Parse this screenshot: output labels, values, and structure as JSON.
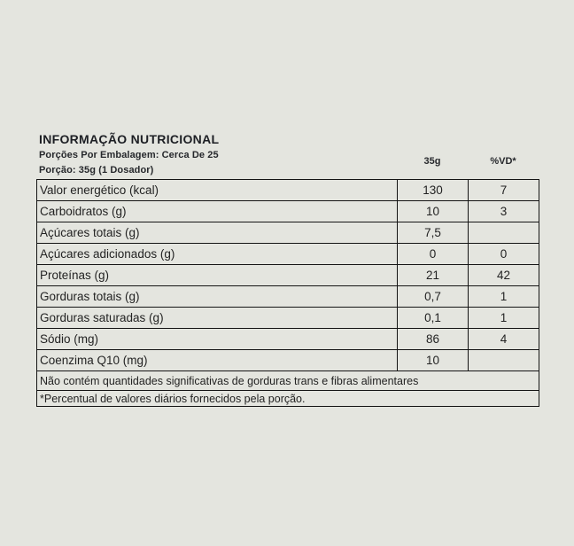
{
  "page": {
    "background_color": "#e4e5df",
    "border_color": "#141414",
    "text_color": "#232323"
  },
  "header": {
    "title": "INFORMAÇÃO NUTRICIONAL",
    "servings_line": "Porções Por Embalagem: Cerca De 25",
    "portion_line": "Porção: 35g (1 Dosador)"
  },
  "table": {
    "column_headers": {
      "amount": "35g",
      "dv": "%VD*"
    },
    "rows": [
      {
        "label": "Valor energético (kcal)",
        "amount": "130",
        "dv": "7"
      },
      {
        "label": "Carboidratos (g)",
        "amount": "10",
        "dv": "3"
      },
      {
        "label": "Açúcares totais (g)",
        "amount": "7,5",
        "dv": ""
      },
      {
        "label": "Açúcares adicionados (g)",
        "amount": "0",
        "dv": "0"
      },
      {
        "label": "Proteínas (g)",
        "amount": "21",
        "dv": "42"
      },
      {
        "label": "Gorduras totais (g)",
        "amount": "0,7",
        "dv": "1"
      },
      {
        "label": "Gorduras saturadas (g)",
        "amount": "0,1",
        "dv": "1"
      },
      {
        "label": "Sódio (mg)",
        "amount": "86",
        "dv": "4"
      },
      {
        "label": "Coenzima Q10 (mg)",
        "amount": "10",
        "dv": ""
      }
    ],
    "notes": [
      "Não contém quantidades significativas de gorduras trans e fibras alimentares",
      "*Percentual de valores diários fornecidos pela porção."
    ]
  }
}
